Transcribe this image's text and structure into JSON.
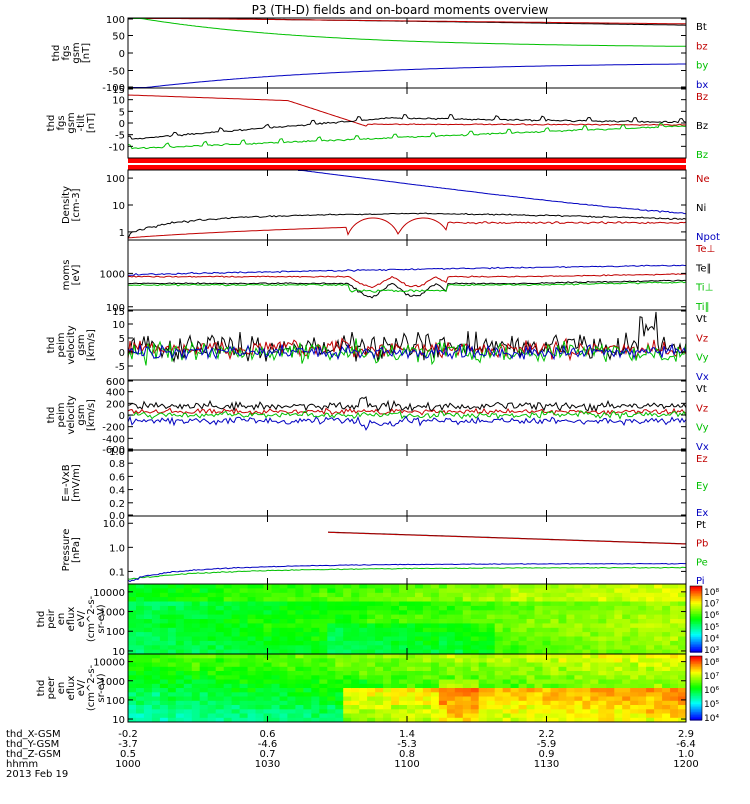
{
  "title": "P3 (TH-D) fields and on-board moments overview",
  "colors": {
    "black": "#000000",
    "red": "#c00000",
    "green": "#00c000",
    "blue": "#0000c0",
    "bar": "#ff0000"
  },
  "chart_data": {
    "type": "line",
    "x_ticks": [
      "1000",
      "1030",
      "1100",
      "1130",
      "1200"
    ],
    "orbit": [
      {
        "label": "thd_X-GSM",
        "values": [
          "-0.2",
          "0.6",
          "1.4",
          "2.2",
          "2.9"
        ]
      },
      {
        "label": "thd_Y-GSM",
        "values": [
          "-3.7",
          "-4.6",
          "-5.3",
          "-5.9",
          "-6.4"
        ]
      },
      {
        "label": "thd_Z-GSM",
        "values": [
          "0.5",
          "0.7",
          "0.8",
          "0.9",
          "1.0"
        ]
      },
      {
        "label": "hhmm",
        "values": [
          "1000",
          "1030",
          "1100",
          "1130",
          "1200"
        ]
      }
    ],
    "date": "2013 Feb 19",
    "panels": [
      {
        "id": "fgs-gsm",
        "ylabel": [
          "thd",
          "fgs",
          "gsm",
          "[nT]"
        ],
        "scale": "linear",
        "ylim": [
          -100,
          100
        ],
        "yticks": [
          "100",
          "50",
          "0",
          "-50",
          "-100"
        ],
        "legend": [
          {
            "name": "Bt",
            "color": "#000000"
          },
          {
            "name": "bz",
            "color": "#c00000"
          },
          {
            "name": "by",
            "color": "#00c000"
          },
          {
            "name": "bx",
            "color": "#0000c0"
          }
        ]
      },
      {
        "id": "fgs-gse-tilt",
        "ylabel": [
          "thd",
          "fgs",
          "gsm",
          "-tilt",
          "[nT]"
        ],
        "scale": "linear",
        "ylim": [
          -15,
          15
        ],
        "yticks": [
          "15",
          "10",
          "5",
          "0",
          "-5",
          "-10"
        ],
        "legend": [
          {
            "name": "Bz",
            "color": "#c00000"
          },
          {
            "name": "Bz",
            "color": "#000000"
          },
          {
            "name": "Bz",
            "color": "#00c000"
          }
        ]
      },
      {
        "id": "density",
        "ylabel": [
          "Density",
          "[cm-3]"
        ],
        "scale": "log",
        "ylim": [
          0.5,
          200
        ],
        "yticks": [
          "100",
          "10",
          "1"
        ],
        "legend": [
          {
            "name": "Ne",
            "color": "#c00000"
          },
          {
            "name": "Ni",
            "color": "#000000"
          },
          {
            "name": "Npot",
            "color": "#0000c0"
          }
        ]
      },
      {
        "id": "temperature",
        "ylabel": [
          "moms",
          "[eV]"
        ],
        "scale": "log",
        "ylim": [
          80,
          10000
        ],
        "yticks": [
          "1000",
          "100"
        ],
        "legend": [
          {
            "name": "Te⊥",
            "color": "#c00000"
          },
          {
            "name": "Te∥",
            "color": "#000000"
          },
          {
            "name": "Ti⊥",
            "color": "#00c000"
          },
          {
            "name": "Ti∥",
            "color": "#00c000"
          }
        ]
      },
      {
        "id": "peim-velocity",
        "ylabel": [
          "thd",
          "peim",
          "velocity",
          "gsm",
          "[km/s]"
        ],
        "scale": "linear",
        "ylim": [
          -10,
          15
        ],
        "yticks": [
          "15",
          "10",
          "5",
          "0",
          "-5"
        ],
        "legend": [
          {
            "name": "Vt",
            "color": "#000000"
          },
          {
            "name": "Vz",
            "color": "#c00000"
          },
          {
            "name": "Vy",
            "color": "#00c000"
          },
          {
            "name": "Vx",
            "color": "#0000c0"
          }
        ]
      },
      {
        "id": "peim-velocity-2",
        "ylabel": [
          "thd",
          "peim",
          "velocity",
          "gsm",
          "[km/s]"
        ],
        "scale": "linear",
        "ylim": [
          -600,
          600
        ],
        "yticks": [
          "600",
          "400",
          "200",
          "0",
          "-200",
          "-400",
          "-600"
        ],
        "legend": [
          {
            "name": "Vt",
            "color": "#000000"
          },
          {
            "name": "Vz",
            "color": "#c00000"
          },
          {
            "name": "Vy",
            "color": "#00c000"
          },
          {
            "name": "Vx",
            "color": "#0000c0"
          }
        ]
      },
      {
        "id": "e-vxb",
        "ylabel": [
          "E=-VxB",
          "[mV/m]"
        ],
        "scale": "linear",
        "ylim": [
          0,
          1
        ],
        "yticks": [
          "1.0",
          "0.8",
          "0.6",
          "0.4",
          "0.2",
          "0.0"
        ],
        "legend": [
          {
            "name": "Ez",
            "color": "#c00000"
          },
          {
            "name": "Ey",
            "color": "#00c000"
          },
          {
            "name": "Ex",
            "color": "#0000c0"
          }
        ]
      },
      {
        "id": "pressure",
        "ylabel": [
          "Pressure",
          "[nPa]"
        ],
        "scale": "log",
        "ylim": [
          0.03,
          20
        ],
        "yticks": [
          "10.0",
          "1.0",
          "0.1"
        ],
        "legend": [
          {
            "name": "Pt",
            "color": "#000000"
          },
          {
            "name": "Pb",
            "color": "#c00000"
          },
          {
            "name": "Pe",
            "color": "#00c000"
          },
          {
            "name": "Pi",
            "color": "#0000c0"
          }
        ]
      },
      {
        "id": "peir-spec",
        "ylabel": [
          "thd",
          "peir",
          "en",
          "eflux",
          "eV/",
          "(cm^2-s-",
          "sr-eV)"
        ],
        "scale": "log",
        "ylim": [
          7,
          25000
        ],
        "yticks": [
          "10000",
          "1000",
          "100",
          "10"
        ],
        "colorbar": [
          "10⁸",
          "10⁷",
          "10⁶",
          "10⁵",
          "10⁴",
          "10³"
        ]
      },
      {
        "id": "peer-spec",
        "ylabel": [
          "thd",
          "peer",
          "en",
          "eflux",
          "eV/",
          "(cm^2-s-",
          "sr-eV)"
        ],
        "scale": "log",
        "ylim": [
          7,
          25000
        ],
        "yticks": [
          "10000",
          "1000",
          "100",
          "10"
        ],
        "colorbar": [
          "10⁸",
          "10⁷",
          "10⁶",
          "10⁵",
          "10⁴"
        ]
      }
    ]
  }
}
